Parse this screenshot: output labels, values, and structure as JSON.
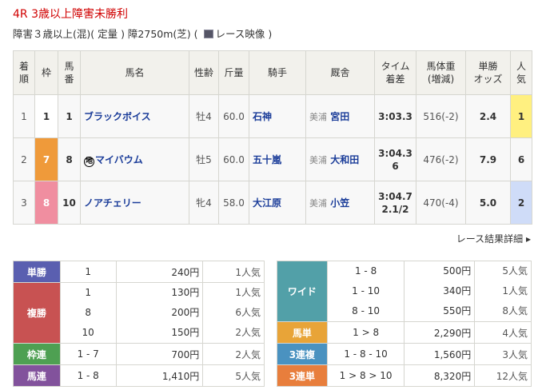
{
  "race": {
    "title": "4R 3歳以上障害未勝利",
    "conditions": "障害３歳以上(混)( 定量 ) 障2750m(芝)  (",
    "video_label": "レース映像",
    "close_paren": " )"
  },
  "table": {
    "headers": [
      "着\n順",
      "枠",
      "馬\n番",
      "馬名",
      "性齢",
      "斤量",
      "騎手",
      "厩舎",
      "タイム\n着差",
      "馬体重\n(増減)",
      "単勝\nオッズ",
      "人\n気"
    ],
    "rows": [
      {
        "rank": "1",
        "frame": "1",
        "num": "1",
        "mark": "",
        "name": "ブラックボイス",
        "sexage": "牡4",
        "weight": "60.0",
        "jockey": "石神",
        "area": "美浦",
        "trainer": "宮田",
        "time": "3:03.3",
        "margin": "",
        "body": "516(-2)",
        "odds": "2.4",
        "pop": "1",
        "frame_color": "#ffffff",
        "frame_text": "#333333",
        "pop_color": "#fff080"
      },
      {
        "rank": "2",
        "frame": "7",
        "num": "8",
        "mark": "地",
        "name": "マイバウム",
        "sexage": "牡5",
        "weight": "60.0",
        "jockey": "五十嵐",
        "area": "美浦",
        "trainer": "大和田",
        "time": "3:04.3",
        "margin": "6",
        "body": "476(-2)",
        "odds": "7.9",
        "pop": "6",
        "frame_color": "#ef9a3a",
        "frame_text": "#ffffff",
        "pop_color": "#f8f8f8"
      },
      {
        "rank": "3",
        "frame": "8",
        "num": "10",
        "mark": "",
        "name": "ノアチェリー",
        "sexage": "牝4",
        "weight": "58.0",
        "jockey": "大江原",
        "area": "美浦",
        "trainer": "小笠",
        "time": "3:04.7",
        "margin": "2.1/2",
        "body": "470(-4)",
        "odds": "5.0",
        "pop": "2",
        "frame_color": "#f08ea0",
        "frame_text": "#ffffff",
        "pop_color": "#cfdcf8"
      }
    ]
  },
  "more_label": "レース結果詳細 ▸",
  "payouts_left": [
    {
      "type": "単勝",
      "color": "#5a5fb0",
      "entries": [
        {
          "combo": "1",
          "pay": "240円",
          "pop": "1人気"
        }
      ]
    },
    {
      "type": "複勝",
      "color": "#c85252",
      "entries": [
        {
          "combo": "1",
          "pay": "130円",
          "pop": "1人気"
        },
        {
          "combo": "8",
          "pay": "200円",
          "pop": "6人気"
        },
        {
          "combo": "10",
          "pay": "150円",
          "pop": "2人気"
        }
      ]
    },
    {
      "type": "枠連",
      "color": "#4ea052",
      "entries": [
        {
          "combo": "1 - 7",
          "pay": "700円",
          "pop": "2人気"
        }
      ]
    },
    {
      "type": "馬連",
      "color": "#82529c",
      "entries": [
        {
          "combo": "1 - 8",
          "pay": "1,410円",
          "pop": "5人気"
        }
      ]
    }
  ],
  "payouts_right": [
    {
      "type": "ワイド",
      "color": "#52a0a8",
      "entries": [
        {
          "combo": "1 - 8",
          "pay": "500円",
          "pop": "5人気"
        },
        {
          "combo": "1 - 10",
          "pay": "340円",
          "pop": "1人気"
        },
        {
          "combo": "8 - 10",
          "pay": "550円",
          "pop": "8人気"
        }
      ]
    },
    {
      "type": "馬単",
      "color": "#e8a438",
      "entries": [
        {
          "combo": "1 > 8",
          "pay": "2,290円",
          "pop": "4人気"
        }
      ]
    },
    {
      "type": "3連複",
      "color": "#4a92c0",
      "entries": [
        {
          "combo": "1 - 8 - 10",
          "pay": "1,560円",
          "pop": "3人気"
        }
      ]
    },
    {
      "type": "3連単",
      "color": "#e87e3c",
      "entries": [
        {
          "combo": "1 > 8 > 10",
          "pay": "8,320円",
          "pop": "12人気"
        }
      ]
    }
  ]
}
